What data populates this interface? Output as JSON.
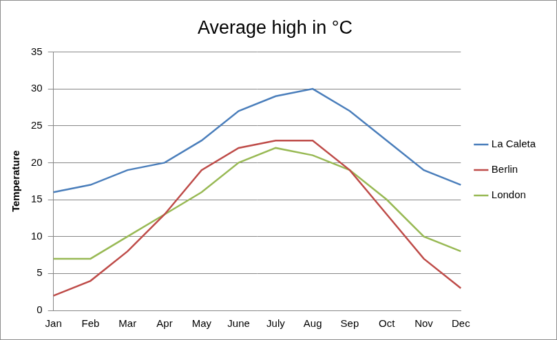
{
  "chart_data": {
    "type": "line",
    "title": "Average high in °C",
    "ylabel": "Temperature",
    "categories": [
      "Jan",
      "Feb",
      "Mar",
      "Apr",
      "May",
      "June",
      "July",
      "Aug",
      "Sep",
      "Oct",
      "Nov",
      "Dec"
    ],
    "series": [
      {
        "name": "La Caleta",
        "color": "#4a7ebb",
        "values": [
          16,
          17,
          19,
          20,
          23,
          27,
          29,
          30,
          27,
          23,
          19,
          17
        ]
      },
      {
        "name": "Berlin",
        "color": "#be4b48",
        "values": [
          2,
          4,
          8,
          13,
          19,
          22,
          23,
          23,
          19,
          13,
          7,
          3
        ]
      },
      {
        "name": "London",
        "color": "#98b954",
        "values": [
          7,
          7,
          10,
          13,
          16,
          20,
          22,
          21,
          19,
          15,
          10,
          8
        ]
      }
    ],
    "ylim": [
      0,
      35
    ],
    "yticks": [
      0,
      5,
      10,
      15,
      20,
      25,
      30,
      35
    ],
    "grid": true,
    "legend": "right"
  }
}
